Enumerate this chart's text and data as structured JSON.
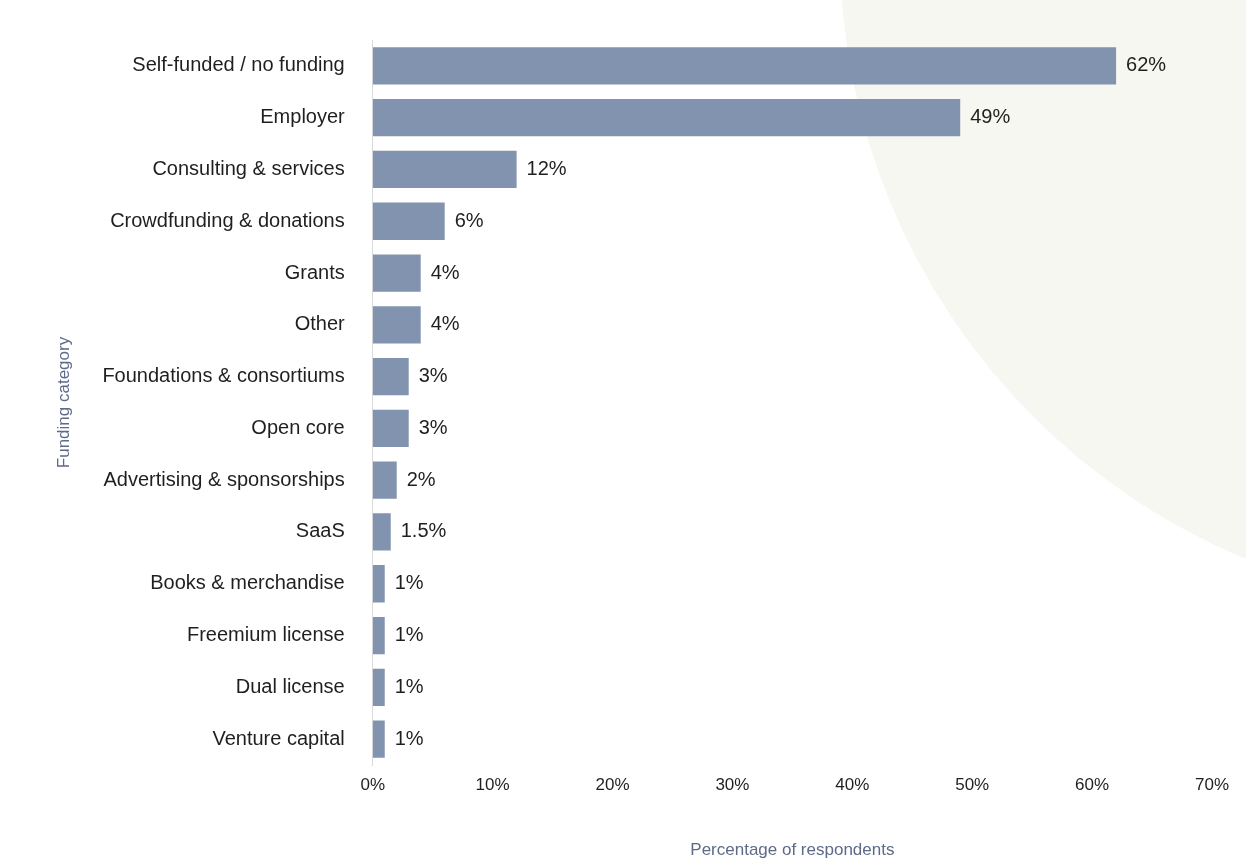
{
  "chart_data": {
    "type": "bar",
    "orientation": "horizontal",
    "xlabel": "Percentage of respondents",
    "ylabel": "Funding category",
    "categories": [
      "Self-funded / no funding",
      "Employer",
      "Consulting & services",
      "Crowdfunding & donations",
      "Grants",
      "Other",
      "Foundations & consortiums",
      "Open core",
      "Advertising & sponsorships",
      "SaaS",
      "Books & merchandise",
      "Freemium license",
      "Dual license",
      "Venture capital"
    ],
    "values": [
      62,
      49,
      12,
      6,
      4,
      4,
      3,
      3,
      2,
      1.5,
      1,
      1,
      1,
      1
    ],
    "value_labels": [
      "62%",
      "49%",
      "12%",
      "6%",
      "4%",
      "4%",
      "3%",
      "3%",
      "2%",
      "1.5%",
      "1%",
      "1%",
      "1%",
      "1%"
    ],
    "color": "#8193ae",
    "xlim": [
      0,
      70
    ],
    "xticks": [
      {
        "value": 0,
        "label": "0%"
      },
      {
        "value": 10,
        "label": "10%"
      },
      {
        "value": 20,
        "label": "20%"
      },
      {
        "value": 30,
        "label": "30%"
      },
      {
        "value": 40,
        "label": "40%"
      },
      {
        "value": 50,
        "label": "50%"
      },
      {
        "value": 60,
        "label": "60%"
      },
      {
        "value": 70,
        "label": "70%"
      }
    ],
    "grid": false,
    "legend": false
  }
}
